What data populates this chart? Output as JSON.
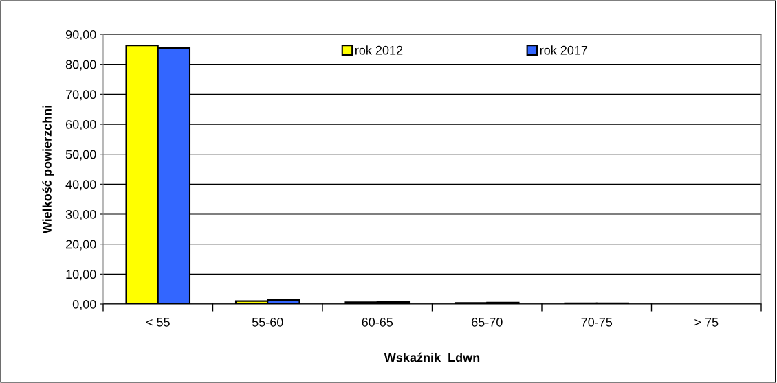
{
  "chart_data": {
    "type": "bar",
    "xlabel": "Wskaźnik  Ldwn",
    "ylabel": "Wielkość powierzchni",
    "categories": [
      "< 55",
      "55-60",
      "60-65",
      "65-70",
      "70-75",
      "> 75"
    ],
    "series": [
      {
        "name": "rok 2012",
        "color": "#ffff00",
        "values": [
          86.3,
          1.0,
          0.6,
          0.4,
          0.3,
          0.0
        ]
      },
      {
        "name": "rok 2017",
        "color": "#3366ff",
        "values": [
          85.4,
          1.4,
          0.7,
          0.5,
          0.3,
          0.0
        ]
      }
    ],
    "ylim": [
      0,
      90
    ],
    "yticks": [
      {
        "value": 0,
        "label": "0,00"
      },
      {
        "value": 10,
        "label": "10,00"
      },
      {
        "value": 20,
        "label": "20,00"
      },
      {
        "value": 30,
        "label": "30,00"
      },
      {
        "value": 40,
        "label": "40,00"
      },
      {
        "value": 50,
        "label": "50,00"
      },
      {
        "value": 60,
        "label": "60,00"
      },
      {
        "value": 70,
        "label": "70,00"
      },
      {
        "value": 80,
        "label": "80,00"
      },
      {
        "value": 90,
        "label": "90,00"
      }
    ],
    "grid": "y",
    "legend": "top"
  }
}
